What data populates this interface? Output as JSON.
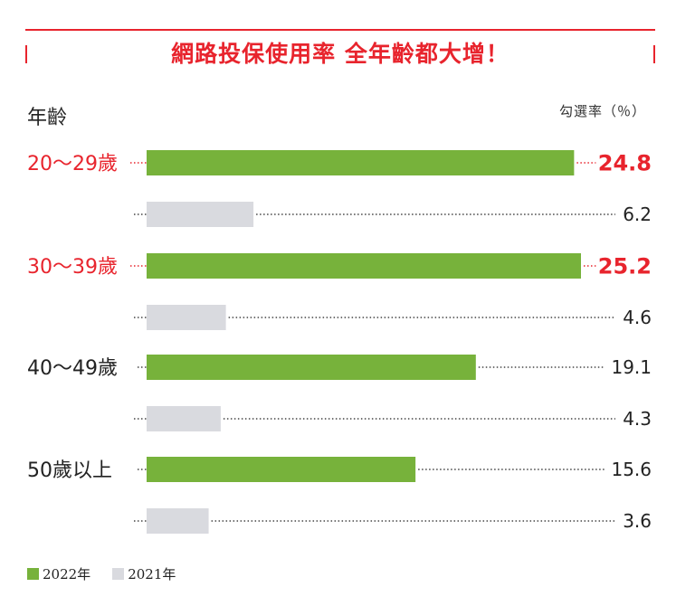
{
  "title": "網路投保使用率 全年齡都大增！",
  "header": {
    "left": "年齡",
    "right": "勾選率（％）"
  },
  "colors": {
    "accent": "#e8242d",
    "series_2022": "#77b23b",
    "series_2021": "#d9dadf",
    "text": "#222222"
  },
  "chart_data": {
    "type": "bar",
    "orientation": "horizontal",
    "categories": [
      "20～29歲",
      "30～39歲",
      "40～49歲",
      "50歲以上"
    ],
    "highlight": [
      true,
      true,
      false,
      false
    ],
    "series": [
      {
        "name": "2022年",
        "values": [
          24.8,
          25.2,
          19.1,
          15.6
        ]
      },
      {
        "name": "2021年",
        "values": [
          6.2,
          4.6,
          4.3,
          3.6
        ]
      }
    ],
    "value_labels": [
      [
        "24.8",
        "25.2",
        "19.1",
        "15.6"
      ],
      [
        "6.2",
        "4.6",
        "4.3",
        "3.6"
      ]
    ],
    "xlim": [
      0,
      25.2
    ],
    "legend": "bottom-left",
    "grid": false
  }
}
